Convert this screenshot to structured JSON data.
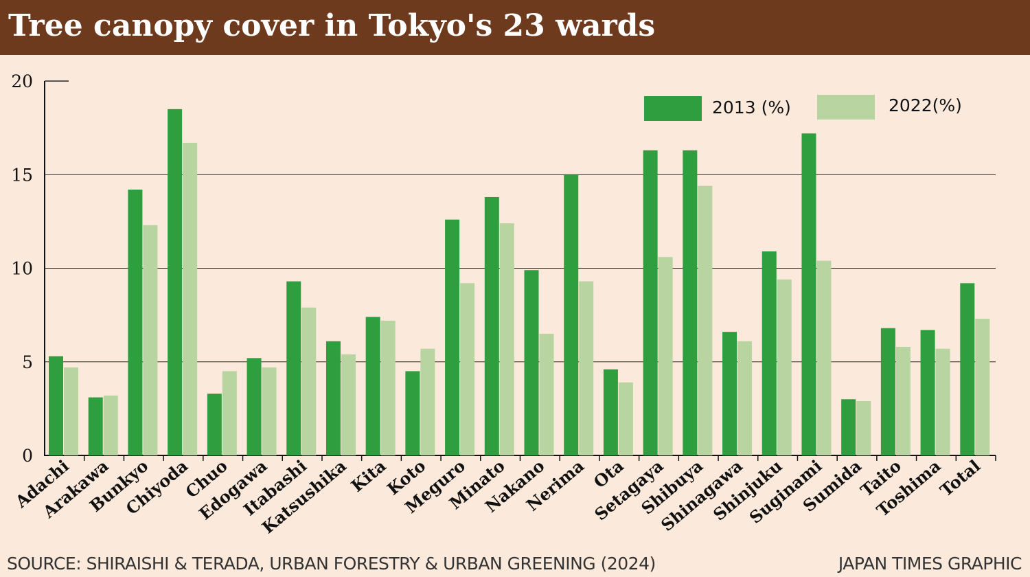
{
  "title": "Tree canopy cover in Tokyo's 23 wards",
  "source": "SOURCE: SHIRAISHI & TERADA, URBAN FORESTRY & URBAN GREENING (2024)",
  "credit": "JAPAN TIMES GRAPHIC",
  "colors": {
    "header_bg": "#6e3a1e",
    "background": "#fbeadb",
    "series_2013": "#2e9e3e",
    "series_2022": "#b8d4a1"
  },
  "chart_data": {
    "type": "bar",
    "categories": [
      "Adachi",
      "Arakawa",
      "Bunkyo",
      "Chiyoda",
      "Chuo",
      "Edogawa",
      "Itabashi",
      "Katsushika",
      "Kita",
      "Koto",
      "Meguro",
      "Minato",
      "Nakano",
      "Nerima",
      "Ota",
      "Setagaya",
      "Shibuya",
      "Shinagawa",
      "Shinjuku",
      "Suginami",
      "Sumida",
      "Taito",
      "Toshima",
      "Total"
    ],
    "series": [
      {
        "name": "2013 (%)",
        "values": [
          5.3,
          3.1,
          14.2,
          18.5,
          3.3,
          5.2,
          9.3,
          6.1,
          7.4,
          4.5,
          12.6,
          13.8,
          9.9,
          15.0,
          4.6,
          16.3,
          16.3,
          6.6,
          10.9,
          17.2,
          3.0,
          6.8,
          6.7,
          9.2
        ]
      },
      {
        "name": "2022(%)",
        "values": [
          4.7,
          3.2,
          12.3,
          16.7,
          4.5,
          4.7,
          7.9,
          5.4,
          7.2,
          5.7,
          9.2,
          12.4,
          6.5,
          9.3,
          3.9,
          10.6,
          14.4,
          6.1,
          9.4,
          10.4,
          2.9,
          5.8,
          5.7,
          7.3
        ]
      }
    ],
    "yticks": [
      0,
      5,
      10,
      15,
      20
    ],
    "ylim": [
      0,
      20
    ],
    "grid": true,
    "legend_position": "top-right",
    "xlabel": "",
    "ylabel": "",
    "title": "Tree canopy cover in Tokyo's 23 wards"
  }
}
